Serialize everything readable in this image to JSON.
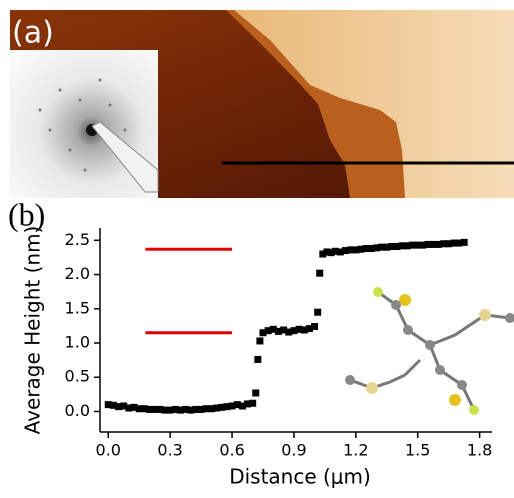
{
  "panel_labels": [
    "(a)",
    "(b)"
  ],
  "chart_data": {
    "type": "scatter",
    "x_label": "Distance (μm)",
    "y_label": "Average Height (nm)",
    "xlim": [
      -0.04,
      1.86
    ],
    "ylim": [
      -0.3,
      2.68
    ],
    "xticks": [
      {
        "value": 0,
        "label": "0.0"
      },
      0.3,
      0.6,
      0.9,
      1.2,
      1.5,
      1.8
    ],
    "yticks": [
      {
        "value": 0,
        "label": "0.0"
      },
      0.5,
      {
        "value": 1,
        "label": "1.0"
      },
      1.5,
      {
        "value": 2,
        "label": "2.0"
      },
      2.5
    ],
    "series": [
      {
        "color": "#000000",
        "x": [
          0.0,
          0.025,
          0.05,
          0.075,
          0.1,
          0.125,
          0.15,
          0.175,
          0.2,
          0.225,
          0.25,
          0.275,
          0.3,
          0.325,
          0.35,
          0.375,
          0.4,
          0.425,
          0.45,
          0.475,
          0.5,
          0.525,
          0.55,
          0.575,
          0.6,
          0.625,
          0.65,
          0.675,
          0.7,
          0.715,
          0.725,
          0.735,
          0.75,
          0.775,
          0.8,
          0.825,
          0.85,
          0.875,
          0.9,
          0.925,
          0.95,
          0.975,
          1.0,
          1.015,
          1.025,
          1.04,
          1.06,
          1.08,
          1.1,
          1.125,
          1.15,
          1.175,
          1.2,
          1.225,
          1.25,
          1.275,
          1.3,
          1.325,
          1.35,
          1.375,
          1.4,
          1.425,
          1.45,
          1.475,
          1.5,
          1.525,
          1.55,
          1.575,
          1.6,
          1.625,
          1.65,
          1.675,
          1.7,
          1.725
        ],
        "values": [
          0.1,
          0.09,
          0.07,
          0.08,
          0.05,
          0.06,
          0.04,
          0.04,
          0.03,
          0.03,
          0.03,
          0.02,
          0.02,
          0.03,
          0.02,
          0.03,
          0.02,
          0.03,
          0.03,
          0.04,
          0.04,
          0.05,
          0.06,
          0.07,
          0.08,
          0.1,
          0.08,
          0.11,
          0.12,
          0.27,
          0.76,
          1.03,
          1.15,
          1.18,
          1.2,
          1.17,
          1.19,
          1.16,
          1.18,
          1.2,
          1.19,
          1.21,
          1.24,
          1.45,
          2.02,
          2.3,
          2.33,
          2.32,
          2.34,
          2.33,
          2.35,
          2.36,
          2.36,
          2.37,
          2.38,
          2.38,
          2.39,
          2.4,
          2.4,
          2.41,
          2.41,
          2.42,
          2.42,
          2.43,
          2.43,
          2.43,
          2.44,
          2.44,
          2.44,
          2.45,
          2.45,
          2.46,
          2.46,
          2.47
        ]
      }
    ],
    "reference_lines": [
      {
        "color": "#e00000",
        "y": 2.37,
        "x": [
          0.18,
          0.6
        ]
      },
      {
        "color": "#e00000",
        "y": 1.15,
        "x": [
          0.18,
          0.6
        ]
      }
    ]
  }
}
